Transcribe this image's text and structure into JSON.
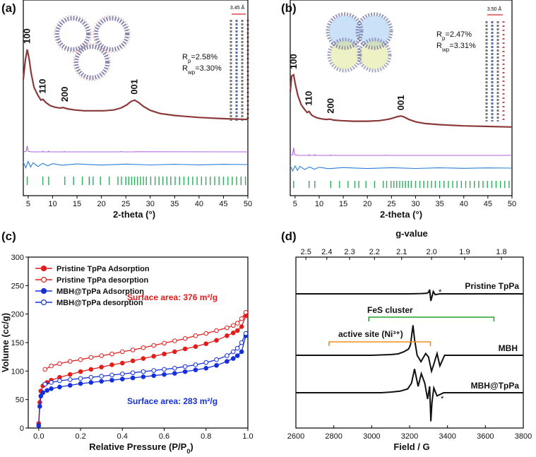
{
  "colors": {
    "observed": "#8b3a3a",
    "calculated": "#b266e0",
    "difference": "#2a7fd4",
    "bragg": "#2eaa5c",
    "tppa": "#e31c1c",
    "mbh_tppa": "#1530d8",
    "fes_bracket": "#2ca02c",
    "active_bracket": "#f28c1e",
    "inset_blue": "#6aa9e8",
    "inset_yellow": "#d8e07a",
    "scale_arrow": "#d62728"
  },
  "panels": {
    "a": {
      "label": "(a)",
      "rp": "2.58%",
      "rwp": "3.30%",
      "stack_label": "3.45 Å",
      "peaks": [
        "100",
        "110",
        "200",
        "001"
      ],
      "xlabel": "2-theta (°)"
    },
    "b": {
      "label": "(b)",
      "rp": "2.47%",
      "rwp": "3.31%",
      "stack_label": "3.50 Å",
      "peaks": [
        "100",
        "110",
        "200",
        "001"
      ],
      "xlabel": "2-theta (°)"
    },
    "c": {
      "label": "(c)",
      "sa1": "Surface area: 376 m²/g",
      "sa2": "Surface area: 283 m²/g"
    },
    "d": {
      "label": "(d)",
      "toplabel": "g-value",
      "fes": "FeS cluster",
      "active": "active site (Ni³⁺)",
      "trace_labels": [
        "Pristine TpPa",
        "MBH",
        "MBH@TpPa"
      ],
      "star": "*"
    }
  },
  "chart_data": [
    {
      "panel": "a",
      "type": "line",
      "xlabel": "2-theta (°)",
      "ylabel": "",
      "xlim": [
        4,
        50
      ],
      "xticks": [
        5,
        10,
        15,
        20,
        25,
        30,
        35,
        40,
        45,
        50
      ],
      "peak_labels": [
        {
          "text": "100",
          "x": 4.8
        },
        {
          "text": "110",
          "x": 8.0
        },
        {
          "text": "200",
          "x": 12.5
        },
        {
          "text": "001",
          "x": 26.8
        }
      ],
      "annotations": [
        "Rp=2.58%",
        "Rwp=3.30%",
        "3.45 Å"
      ],
      "series": [
        {
          "role": "observed",
          "x": [
            4,
            4.4,
            4.8,
            5.2,
            5.6,
            6.2,
            7.0,
            7.6,
            8.0,
            8.6,
            9.5,
            10.5,
            11.5,
            12.2,
            13.0,
            14.5,
            16.5,
            18.5,
            20.5,
            22.5,
            24.0,
            25.2,
            26.0,
            26.8,
            27.6,
            28.6,
            30.0,
            32.0,
            35.0,
            40.0,
            45.0,
            50.0
          ],
          "y": [
            0.62,
            0.86,
            1.0,
            0.88,
            0.7,
            0.52,
            0.42,
            0.36,
            0.37,
            0.33,
            0.29,
            0.27,
            0.26,
            0.265,
            0.25,
            0.235,
            0.225,
            0.225,
            0.225,
            0.235,
            0.26,
            0.3,
            0.34,
            0.36,
            0.33,
            0.28,
            0.23,
            0.19,
            0.165,
            0.14,
            0.125,
            0.115
          ]
        },
        {
          "role": "calculated",
          "x": [
            4,
            4.6,
            4.8,
            5.0,
            5.6,
            7.9,
            8.0,
            8.1,
            9.1,
            9.2,
            9.3,
            12.3,
            12.4,
            12.5,
            23.5,
            24.0,
            24.5,
            26.5,
            27.0,
            50.0
          ],
          "y": [
            0,
            0.1,
            0.85,
            0.1,
            0.0,
            0.0,
            0.11,
            0.0,
            0.0,
            0.12,
            0.0,
            0.0,
            0.07,
            0.0,
            0.0,
            0.03,
            0.0,
            0.0,
            0.02,
            0.0
          ]
        },
        {
          "role": "difference",
          "x": [
            4,
            4.5,
            5.0,
            5.5,
            6.0,
            7.0,
            8.0,
            9.0,
            10.0,
            12.0,
            15.0,
            20.0,
            25.0,
            30.0,
            35.0,
            40.0,
            45.0,
            50.0
          ],
          "y": [
            0.04,
            -0.05,
            0.05,
            -0.04,
            0.03,
            -0.03,
            0.02,
            -0.02,
            0.015,
            -0.01,
            0.01,
            -0.008,
            0.008,
            -0.006,
            0.005,
            -0.005,
            0.004,
            0.0
          ]
        },
        {
          "role": "bragg_positions",
          "x": [
            4.8,
            8.0,
            9.2,
            12.5,
            14.3,
            16.1,
            17.5,
            18.3,
            19.8,
            21.6,
            23.4,
            24.1,
            25.0,
            25.6,
            26.2,
            26.8,
            27.4,
            28.0,
            28.6,
            29.2,
            30.1,
            31.0,
            31.8,
            32.6,
            33.4,
            34.2,
            35.1,
            36.0,
            36.9,
            37.8,
            38.7,
            39.6,
            40.5,
            41.4,
            42.3,
            43.2,
            44.1,
            45.0,
            45.9,
            46.8,
            47.7,
            48.6,
            49.5
          ]
        }
      ]
    },
    {
      "panel": "b",
      "type": "line",
      "xlabel": "2-theta (°)",
      "ylabel": "",
      "xlim": [
        4,
        50
      ],
      "xticks": [
        5,
        10,
        15,
        20,
        25,
        30,
        35,
        40,
        45,
        50
      ],
      "peak_labels": [
        {
          "text": "100",
          "x": 4.7
        },
        {
          "text": "110",
          "x": 7.9
        },
        {
          "text": "200",
          "x": 12.4
        },
        {
          "text": "001",
          "x": 27.0
        }
      ],
      "annotations": [
        "Rp=2.47%",
        "Rwp=3.31%",
        "3.50 Å"
      ],
      "series": [
        {
          "role": "observed",
          "x": [
            4,
            4.3,
            4.7,
            5.1,
            5.6,
            6.3,
            7.0,
            7.5,
            7.9,
            8.5,
            9.5,
            10.5,
            11.5,
            12.3,
            13.0,
            14.5,
            17.0,
            20.0,
            22.5,
            24.5,
            25.5,
            26.3,
            27.0,
            27.7,
            28.6,
            30.0,
            32.0,
            35.0,
            40.0,
            45.0,
            50.0
          ],
          "y": [
            0.7,
            0.98,
            1.0,
            0.82,
            0.64,
            0.48,
            0.4,
            0.35,
            0.37,
            0.3,
            0.26,
            0.24,
            0.23,
            0.235,
            0.22,
            0.21,
            0.2,
            0.2,
            0.21,
            0.235,
            0.26,
            0.28,
            0.29,
            0.27,
            0.23,
            0.19,
            0.16,
            0.14,
            0.12,
            0.11,
            0.1
          ]
        },
        {
          "role": "calculated",
          "x": [
            4,
            4.5,
            4.7,
            4.9,
            5.6,
            7.8,
            7.9,
            8.0,
            9.0,
            9.1,
            9.2,
            12.3,
            12.4,
            12.5,
            23.5,
            24.0,
            24.5,
            50.0
          ],
          "y": [
            0,
            0.1,
            0.9,
            0.1,
            0.0,
            0.0,
            0.1,
            0.0,
            0.0,
            0.11,
            0.0,
            0.0,
            0.06,
            0.0,
            0.0,
            0.025,
            0.0,
            0.0
          ]
        },
        {
          "role": "difference",
          "x": [
            4,
            4.5,
            5.0,
            5.5,
            6.0,
            7.0,
            8.0,
            9.0,
            10.0,
            12.0,
            15.0,
            20.0,
            25.0,
            30.0,
            35.0,
            40.0,
            45.0,
            50.0
          ],
          "y": [
            0.04,
            -0.05,
            0.04,
            -0.04,
            0.03,
            -0.025,
            0.02,
            -0.02,
            0.015,
            -0.01,
            0.01,
            -0.008,
            0.007,
            -0.006,
            0.005,
            -0.004,
            0.004,
            0.0
          ]
        },
        {
          "role": "bragg_positions",
          "x": [
            4.7,
            7.9,
            9.1,
            12.4,
            14.2,
            16.0,
            17.4,
            18.2,
            19.7,
            21.5,
            23.3,
            24.0,
            24.9,
            25.5,
            26.1,
            26.7,
            27.3,
            27.9,
            28.5,
            29.1,
            30.0,
            30.9,
            31.7,
            32.5,
            33.3,
            34.1,
            35.0,
            35.9,
            36.8,
            37.7,
            38.6,
            39.5,
            40.4,
            41.3,
            42.2,
            43.1,
            44.0,
            44.9,
            45.8,
            46.7,
            47.6,
            48.5,
            49.4
          ]
        }
      ]
    },
    {
      "panel": "c",
      "type": "line",
      "xlabel": "Relative Pressure (P/P0)",
      "ylabel": "Volume (cc/g)",
      "xlim": [
        -0.05,
        1.0
      ],
      "ylim": [
        0,
        300
      ],
      "xticks": [
        0.0,
        0.2,
        0.4,
        0.6,
        0.8,
        1.0
      ],
      "yticks": [
        0,
        50,
        100,
        150,
        200,
        250,
        300
      ],
      "legend": "top-left",
      "annotations": [
        "Surface area: 376 m²/g",
        "Surface area: 283 m²/g"
      ],
      "series": [
        {
          "name": "Pristine TpPa Adsorption",
          "color": "#e31c1c",
          "filled": true,
          "x": [
            0.0,
            0.005,
            0.01,
            0.02,
            0.04,
            0.06,
            0.1,
            0.15,
            0.2,
            0.25,
            0.3,
            0.35,
            0.4,
            0.45,
            0.5,
            0.55,
            0.6,
            0.65,
            0.7,
            0.75,
            0.8,
            0.85,
            0.9,
            0.93,
            0.95,
            0.97,
            0.99
          ],
          "y": [
            8,
            45,
            65,
            74,
            80,
            84,
            89,
            94,
            99,
            103,
            107,
            111,
            114,
            118,
            122,
            126,
            130,
            134,
            139,
            143,
            148,
            154,
            162,
            167,
            171,
            178,
            197
          ]
        },
        {
          "name": "Pristine TpPa desorption",
          "color": "#e31c1c",
          "filled": false,
          "x": [
            0.99,
            0.97,
            0.95,
            0.93,
            0.9,
            0.85,
            0.8,
            0.75,
            0.7,
            0.65,
            0.6,
            0.55,
            0.5,
            0.45,
            0.4,
            0.35,
            0.3,
            0.25,
            0.2,
            0.15,
            0.1,
            0.06,
            0.03
          ],
          "y": [
            203,
            192,
            184,
            180,
            176,
            171,
            166,
            162,
            157,
            153,
            149,
            145,
            141,
            137,
            134,
            130,
            127,
            124,
            120,
            117,
            113,
            109,
            103
          ]
        },
        {
          "name": "MBH@TpPa Adsorption",
          "color": "#1530d8",
          "filled": true,
          "x": [
            0.0,
            0.005,
            0.01,
            0.02,
            0.04,
            0.06,
            0.1,
            0.15,
            0.2,
            0.25,
            0.3,
            0.35,
            0.4,
            0.45,
            0.5,
            0.55,
            0.6,
            0.65,
            0.7,
            0.75,
            0.8,
            0.85,
            0.9,
            0.93,
            0.95,
            0.97,
            0.99
          ],
          "y": [
            4,
            38,
            56,
            62,
            66,
            69,
            72,
            75,
            78,
            80,
            82,
            84,
            86,
            88,
            90,
            92,
            94,
            96,
            99,
            102,
            105,
            110,
            117,
            122,
            127,
            134,
            162
          ]
        },
        {
          "name": "MBH@TpPa desorption",
          "color": "#1530d8",
          "filled": false,
          "x": [
            0.99,
            0.97,
            0.95,
            0.93,
            0.9,
            0.85,
            0.8,
            0.75,
            0.7,
            0.65,
            0.6,
            0.55,
            0.5,
            0.45,
            0.4,
            0.35,
            0.3,
            0.25,
            0.2,
            0.15,
            0.1,
            0.06,
            0.03
          ],
          "y": [
            166,
            150,
            140,
            134,
            127,
            120,
            115,
            111,
            108,
            105,
            103,
            101,
            99,
            97,
            95,
            93,
            91,
            89,
            87,
            85,
            83,
            80,
            77
          ]
        }
      ]
    },
    {
      "panel": "d",
      "type": "line",
      "xlabel": "Field / G",
      "ylabel": "",
      "xlim": [
        2600,
        3800
      ],
      "xticks": [
        2600,
        2800,
        3000,
        3200,
        3400,
        3600,
        3800
      ],
      "top_axis": {
        "label": "g-value",
        "ticks": [
          2.5,
          2.4,
          2.3,
          2.2,
          2.1,
          2.0,
          1.9,
          1.8
        ]
      },
      "annotations": [
        "FeS cluster",
        "active site (Ni³⁺)",
        "*"
      ],
      "brackets": [
        {
          "label": "FeS cluster",
          "from": 2985,
          "to": 3645,
          "color": "#2ca02c"
        },
        {
          "label": "active site (Ni³⁺)",
          "from": 2775,
          "to": 3310,
          "color": "#f28c1e"
        }
      ],
      "series": [
        {
          "name": "Pristine TpPa",
          "x": [
            2600,
            3000,
            3200,
            3260,
            3290,
            3300,
            3306,
            3312,
            3318,
            3325,
            3335,
            3360,
            3500,
            3800
          ],
          "y": [
            0.0,
            0.0,
            0.0,
            0.01,
            0.02,
            0.05,
            0.15,
            -0.25,
            -0.1,
            0.08,
            -0.03,
            0.0,
            0.0,
            0.0
          ]
        },
        {
          "name": "MBH",
          "x": [
            2600,
            2900,
            3000,
            3050,
            3100,
            3140,
            3170,
            3195,
            3205,
            3218,
            3226,
            3240,
            3260,
            3285,
            3300,
            3316,
            3328,
            3345,
            3360,
            3385,
            3420,
            3500,
            3800
          ],
          "y": [
            0.0,
            0.0,
            0.0,
            0.01,
            0.02,
            0.04,
            0.1,
            0.18,
            0.3,
            0.85,
            0.45,
            0.0,
            -0.18,
            0.05,
            -0.05,
            -0.45,
            -0.25,
            0.05,
            -0.3,
            0.0,
            0.0,
            0.0,
            0.0
          ]
        },
        {
          "name": "MBH@TpPa",
          "x": [
            2600,
            2900,
            3050,
            3100,
            3150,
            3190,
            3210,
            3226,
            3245,
            3262,
            3280,
            3295,
            3306,
            3312,
            3318,
            3328,
            3345,
            3380,
            3420,
            3500,
            3800
          ],
          "y": [
            0.0,
            0.0,
            0.0,
            0.02,
            0.05,
            0.12,
            0.3,
            0.75,
            0.2,
            0.6,
            0.3,
            -0.2,
            0.2,
            -0.9,
            -0.3,
            0.15,
            -0.1,
            0.0,
            0.0,
            0.0,
            0.0
          ]
        }
      ]
    }
  ]
}
